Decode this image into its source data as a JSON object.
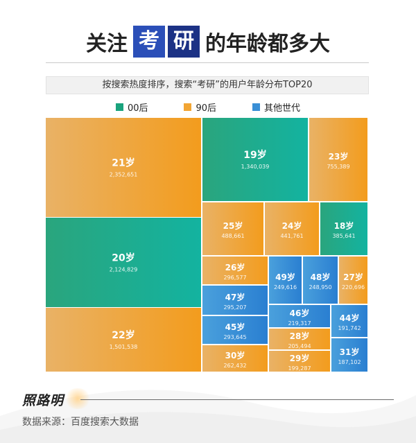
{
  "header": {
    "title_before": "关注",
    "title_box1": "考",
    "title_box2": "研",
    "title_after": "的年龄都多大",
    "subtitle": "按搜索热度排序，搜索“考研”的用户年龄分布TOP20"
  },
  "legend": [
    {
      "label": "00后",
      "color": "#1aa37d"
    },
    {
      "label": "90后",
      "color": "#f2a533"
    },
    {
      "label": "其他世代",
      "color": "#3a8fd6"
    }
  ],
  "chart_data": {
    "type": "treemap",
    "title": "",
    "items": [
      {
        "label": "21岁",
        "value": 2352651,
        "display": "2,352,651",
        "group": "90后"
      },
      {
        "label": "20岁",
        "value": 2124829,
        "display": "2,124,829",
        "group": "00后"
      },
      {
        "label": "22岁",
        "value": 1501538,
        "display": "1,501,538",
        "group": "90后"
      },
      {
        "label": "19岁",
        "value": 1340039,
        "display": "1,340,039",
        "group": "00后"
      },
      {
        "label": "23岁",
        "value": 755389,
        "display": "755,389",
        "group": "90后"
      },
      {
        "label": "25岁",
        "value": 488661,
        "display": "488,661",
        "group": "90后"
      },
      {
        "label": "24岁",
        "value": 441761,
        "display": "441,761",
        "group": "90后"
      },
      {
        "label": "18岁",
        "value": 385641,
        "display": "385,641",
        "group": "00后"
      },
      {
        "label": "26岁",
        "value": 296577,
        "display": "296,577",
        "group": "90后"
      },
      {
        "label": "47岁",
        "value": 295207,
        "display": "295,207",
        "group": "其他世代"
      },
      {
        "label": "45岁",
        "value": 293645,
        "display": "293,645",
        "group": "其他世代"
      },
      {
        "label": "30岁",
        "value": 262432,
        "display": "262,432",
        "group": "90后"
      },
      {
        "label": "49岁",
        "value": 249616,
        "display": "249,616",
        "group": "其他世代"
      },
      {
        "label": "48岁",
        "value": 248950,
        "display": "248,950",
        "group": "其他世代"
      },
      {
        "label": "27岁",
        "value": 220696,
        "display": "220,696",
        "group": "90后"
      },
      {
        "label": "46岁",
        "value": 219317,
        "display": "219,317",
        "group": "其他世代"
      },
      {
        "label": "28岁",
        "value": 205494,
        "display": "205,494",
        "group": "90后"
      },
      {
        "label": "29岁",
        "value": 199287,
        "display": "199,287",
        "group": "90后"
      },
      {
        "label": "44岁",
        "value": 191742,
        "display": "191,742",
        "group": "其他世代"
      },
      {
        "label": "31岁",
        "value": 187102,
        "display": "187,102",
        "group": "其他世代"
      }
    ]
  },
  "footer": {
    "logo": "照路明",
    "source": "数据来源：百度搜索大数据"
  }
}
